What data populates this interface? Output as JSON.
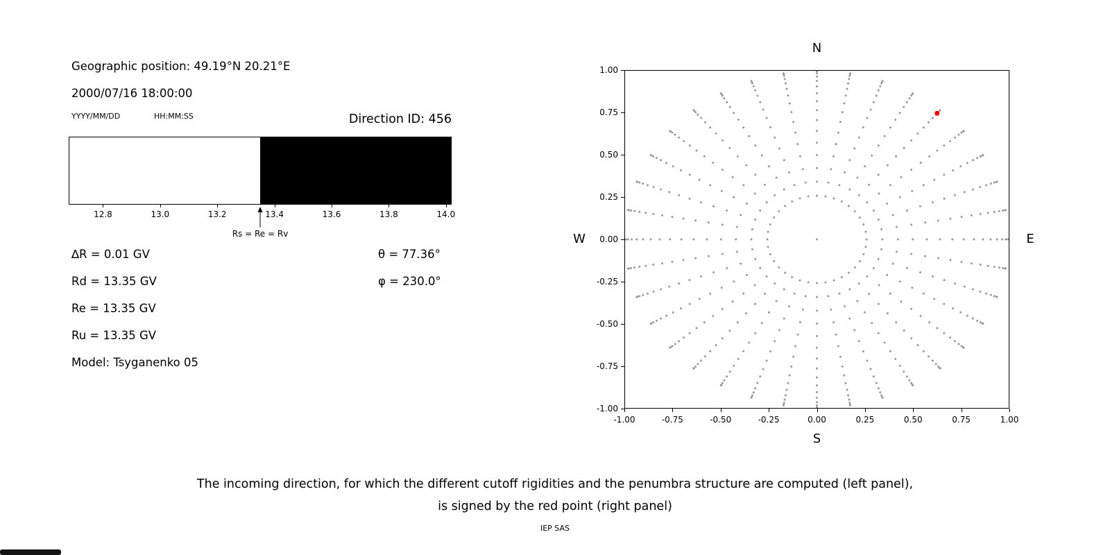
{
  "left_panel": {
    "geo_position": "Geographic position: 49.19°N 20.21°E",
    "datetime": "2000/07/16 18:00:00",
    "date_format_label": "YYYY/MM/DD",
    "time_format_label": "HH:MM:SS",
    "direction_id": "Direction ID: 456",
    "params_left": [
      "∆R = 0.01 GV",
      "Rd = 13.35 GV",
      "Re = 13.35 GV",
      "Ru = 13.35 GV",
      "Model: Tsyganenko 05"
    ],
    "params_right": [
      "θ = 77.36°",
      "φ = 230.0°"
    ]
  },
  "caption": {
    "line1": "The incoming direction, for which the different cutoff rigidities and the penumbra structure are computed (left panel),",
    "line2": "is signed by the red point (right panel)",
    "credit": "IEP SAS"
  },
  "chart_data": [
    {
      "type": "area",
      "xlim": [
        12.68,
        14.02
      ],
      "xticks": [
        "12.8",
        "13.0",
        "13.2",
        "13.4",
        "13.6",
        "13.8",
        "14.0"
      ],
      "bands": [
        {
          "from": 12.68,
          "to": 13.35,
          "color": "#ffffff"
        },
        {
          "from": 13.35,
          "to": 14.02,
          "color": "#000000"
        }
      ],
      "arrow_x": 13.35,
      "arrow_label": "Rs = Re = Rv"
    },
    {
      "type": "scatter",
      "top_label": "N",
      "bottom_label": "S",
      "left_label": "W",
      "right_label": "E",
      "xlim": [
        -1.0,
        1.0
      ],
      "ylim": [
        -1.0,
        1.0
      ],
      "xticks": [
        "-1.00",
        "-0.75",
        "-0.50",
        "-0.25",
        "0.00",
        "0.25",
        "0.50",
        "0.75",
        "1.00"
      ],
      "yticks": [
        "-1.00",
        "-0.75",
        "-0.50",
        "-0.25",
        "0.00",
        "0.25",
        "0.50",
        "0.75",
        "1.00"
      ],
      "grid": false,
      "gray_points": {
        "azimuth_start_deg": 0,
        "azimuth_step_deg": 10,
        "azimuth_count": 36,
        "zenith_angles_deg": [
          15,
          20,
          25,
          30,
          35,
          40,
          45,
          50,
          55,
          60,
          65,
          70,
          75,
          80,
          85,
          87,
          89
        ],
        "radius_rule": "sin(zenith)",
        "include_center_point": true,
        "color": "#999999",
        "dot_radius_px": 1.5
      },
      "red_point": {
        "x": 0.627,
        "y": 0.748,
        "theta_deg": 77.36,
        "phi_deg": 230.0,
        "color": "#ff0000",
        "dot_radius_px": 3.5
      }
    }
  ]
}
